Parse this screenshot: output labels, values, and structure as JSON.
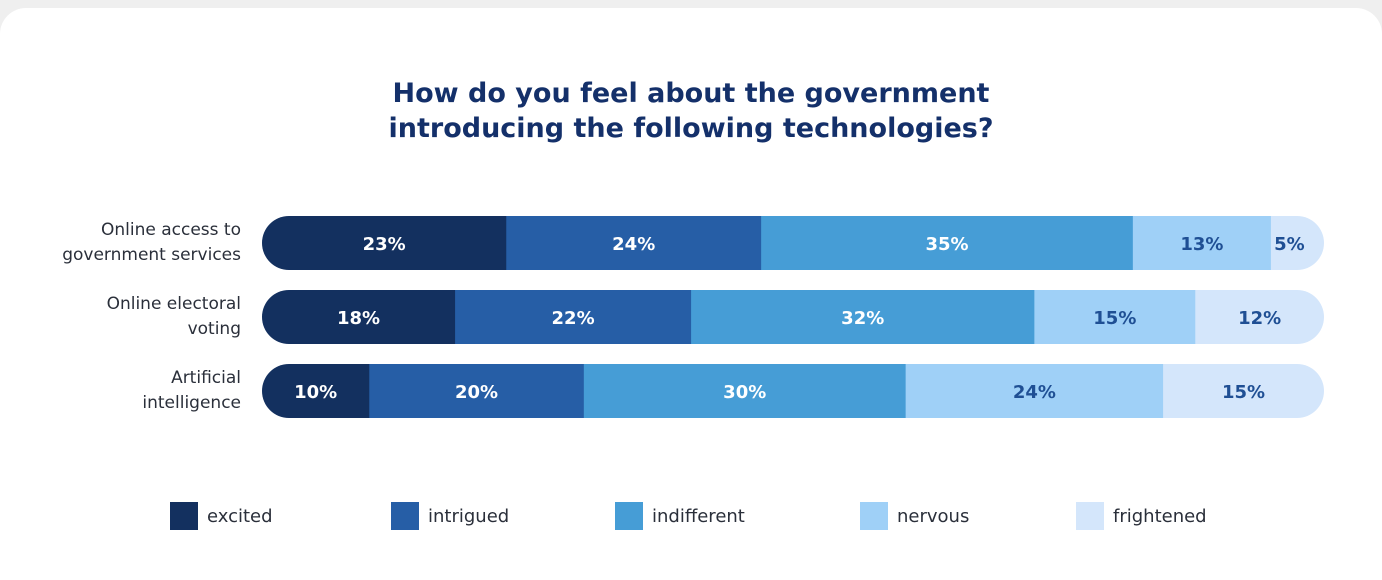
{
  "chart_data": {
    "type": "bar",
    "orientation": "horizontal",
    "stacked": true,
    "title": "How do you feel about the government introducing the following technologies?",
    "title_lines": [
      "How do you feel about the government",
      "introducing the following technologies?"
    ],
    "categories": [
      [
        "Online access to",
        "government services"
      ],
      [
        "Online electoral",
        "voting"
      ],
      [
        "Artificial",
        "intelligence"
      ]
    ],
    "series": [
      {
        "name": "excited",
        "color": "#13305f",
        "label_color": "#ffffff",
        "values": [
          23,
          18,
          10
        ]
      },
      {
        "name": "intrigued",
        "color": "#265ea6",
        "label_color": "#ffffff",
        "values": [
          24,
          22,
          20
        ]
      },
      {
        "name": "indifferent",
        "color": "#469dd6",
        "label_color": "#ffffff",
        "values": [
          35,
          32,
          30
        ]
      },
      {
        "name": "nervous",
        "color": "#9fd0f7",
        "label_color": "#1f4f94",
        "values": [
          13,
          15,
          24
        ]
      },
      {
        "name": "frightened",
        "color": "#d4e6fb",
        "label_color": "#1f4f94",
        "values": [
          5,
          12,
          15
        ]
      }
    ],
    "value_suffix": "%",
    "legend": "bottom"
  }
}
